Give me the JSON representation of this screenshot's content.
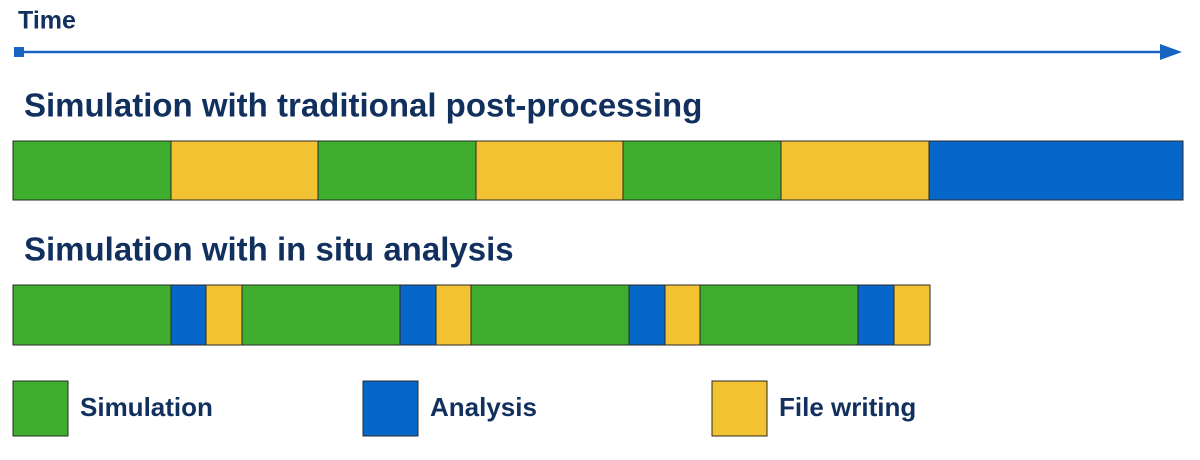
{
  "time_label": "Time",
  "rows": [
    {
      "title": "Simulation with traditional post-processing"
    },
    {
      "title": "Simulation with in situ analysis"
    }
  ],
  "legend": [
    "Simulation",
    "Analysis",
    "File writing"
  ]
}
